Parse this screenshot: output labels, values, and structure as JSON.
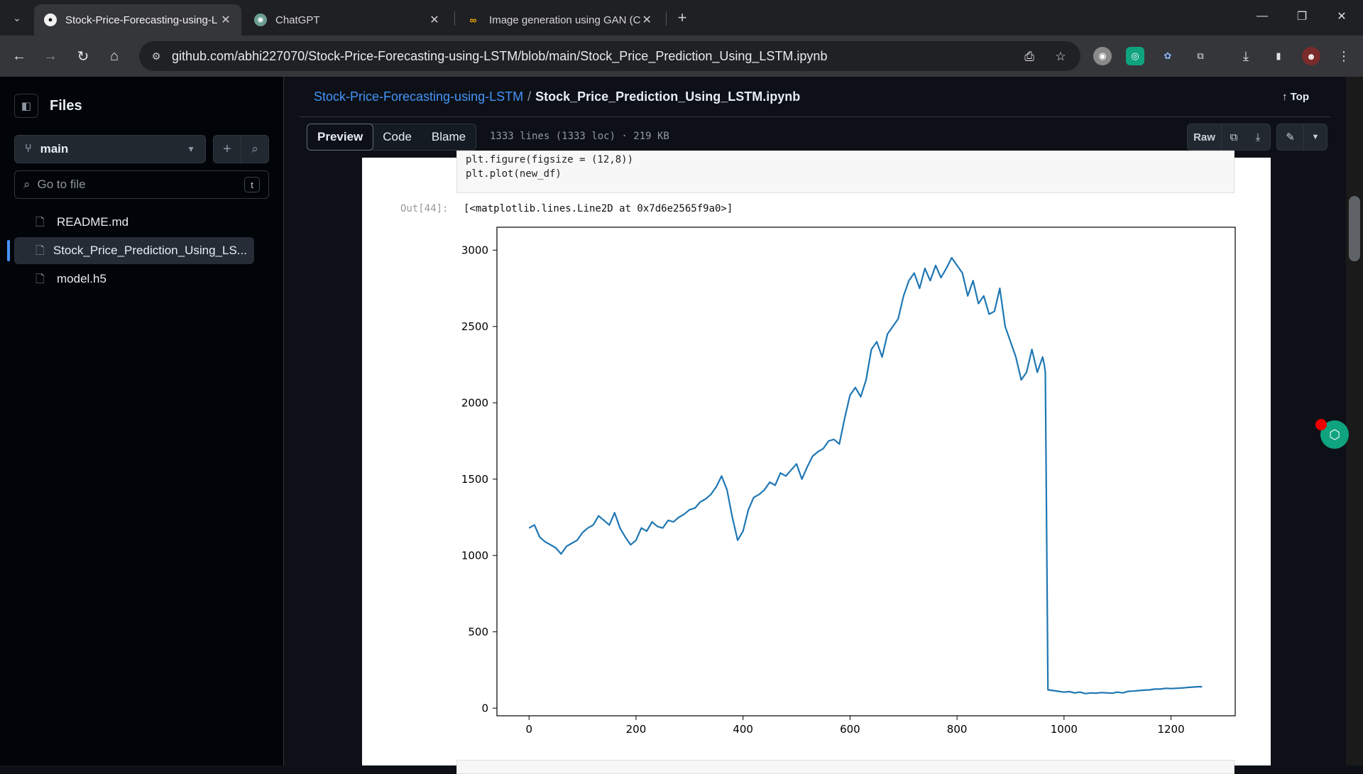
{
  "browser": {
    "tabs": [
      {
        "title": "Stock-Price-Forecasting-using-L",
        "active": true,
        "icon": "github-icon"
      },
      {
        "title": "ChatGPT",
        "active": false,
        "icon": "chatgpt-icon"
      },
      {
        "title": "Image generation using GAN (C",
        "active": false,
        "icon": "co-icon"
      }
    ],
    "url": "github.com/abhi227070/Stock-Price-Forecasting-using-LSTM/blob/main/Stock_Price_Prediction_Using_LSTM.ipynb"
  },
  "sidebar": {
    "title": "Files",
    "branch": "main",
    "search_placeholder": "Go to file",
    "search_shortcut": "t",
    "files": [
      {
        "name": "README.md",
        "active": false
      },
      {
        "name": "Stock_Price_Prediction_Using_LS...",
        "active": true
      },
      {
        "name": "model.h5",
        "active": false
      }
    ]
  },
  "header": {
    "repo": "Stock-Price-Forecasting-using-LSTM",
    "separator": "/",
    "file": "Stock_Price_Prediction_Using_LSTM.ipynb",
    "top_label": "Top"
  },
  "file_toolbar": {
    "tabs": [
      "Preview",
      "Code",
      "Blame"
    ],
    "active_tab": "Preview",
    "info": "1333 lines (1333 loc) · 219 KB",
    "raw_label": "Raw"
  },
  "notebook": {
    "code_lines": [
      "plt.figure(figsize = (12,8))",
      "plt.plot(new_df)"
    ],
    "out_prompt": "Out[44]:",
    "out_text": "[<matplotlib.lines.Line2D at 0x7d6e2565f9a0>]"
  },
  "chart_data": {
    "type": "line",
    "title": "",
    "xlabel": "",
    "ylabel": "",
    "xlim": [
      -60,
      1320
    ],
    "ylim": [
      -50,
      3150
    ],
    "xticks": [
      0,
      200,
      400,
      600,
      800,
      1000,
      1200
    ],
    "yticks": [
      0,
      500,
      1000,
      1500,
      2000,
      2500,
      3000
    ],
    "grid": false,
    "color": "#1f77b4",
    "series": [
      {
        "x": [
          0,
          10,
          20,
          30,
          40,
          50,
          60,
          70,
          80,
          90,
          100,
          110,
          120,
          130,
          140,
          150,
          160,
          170,
          180,
          190,
          200,
          210,
          220,
          230,
          240,
          250,
          260,
          270,
          280,
          290,
          300,
          310,
          320,
          330,
          340,
          350,
          360,
          370,
          380,
          390,
          400,
          410,
          420,
          430,
          440,
          450,
          460,
          470,
          480,
          490,
          500,
          510,
          520,
          530,
          540,
          550,
          560,
          570,
          580,
          590,
          600,
          610,
          620,
          630,
          640,
          650,
          660,
          670,
          680,
          690,
          700,
          710,
          720,
          730,
          740,
          750,
          760,
          770,
          780,
          790,
          800,
          810,
          820,
          830,
          840,
          850,
          860,
          870,
          880,
          890,
          900,
          910,
          920,
          930,
          940,
          950,
          960,
          963,
          965,
          970,
          980,
          990,
          1000,
          1010,
          1020,
          1030,
          1040,
          1050,
          1060,
          1070,
          1080,
          1090,
          1100,
          1110,
          1120,
          1130,
          1140,
          1150,
          1160,
          1170,
          1180,
          1190,
          1200,
          1210,
          1220,
          1230,
          1240,
          1250,
          1258
        ],
        "y": [
          1180,
          1200,
          1120,
          1090,
          1070,
          1050,
          1010,
          1060,
          1080,
          1100,
          1150,
          1180,
          1200,
          1260,
          1230,
          1200,
          1280,
          1180,
          1120,
          1070,
          1100,
          1180,
          1160,
          1220,
          1190,
          1180,
          1230,
          1220,
          1250,
          1270,
          1300,
          1310,
          1350,
          1370,
          1400,
          1450,
          1520,
          1430,
          1250,
          1100,
          1160,
          1300,
          1380,
          1400,
          1430,
          1480,
          1460,
          1540,
          1520,
          1560,
          1600,
          1500,
          1580,
          1650,
          1680,
          1700,
          1750,
          1760,
          1730,
          1900,
          2050,
          2100,
          2040,
          2150,
          2350,
          2400,
          2300,
          2450,
          2500,
          2550,
          2700,
          2800,
          2850,
          2750,
          2880,
          2800,
          2900,
          2820,
          2880,
          2950,
          2900,
          2850,
          2700,
          2800,
          2650,
          2700,
          2580,
          2600,
          2750,
          2500,
          2400,
          2300,
          2150,
          2200,
          2350,
          2200,
          2300,
          2250,
          2200,
          120,
          115,
          110,
          105,
          108,
          100,
          105,
          95,
          100,
          98,
          102,
          100,
          98,
          105,
          100,
          110,
          112,
          115,
          118,
          120,
          125,
          125,
          130,
          128,
          130,
          132,
          135,
          138,
          140,
          140
        ]
      }
    ]
  }
}
